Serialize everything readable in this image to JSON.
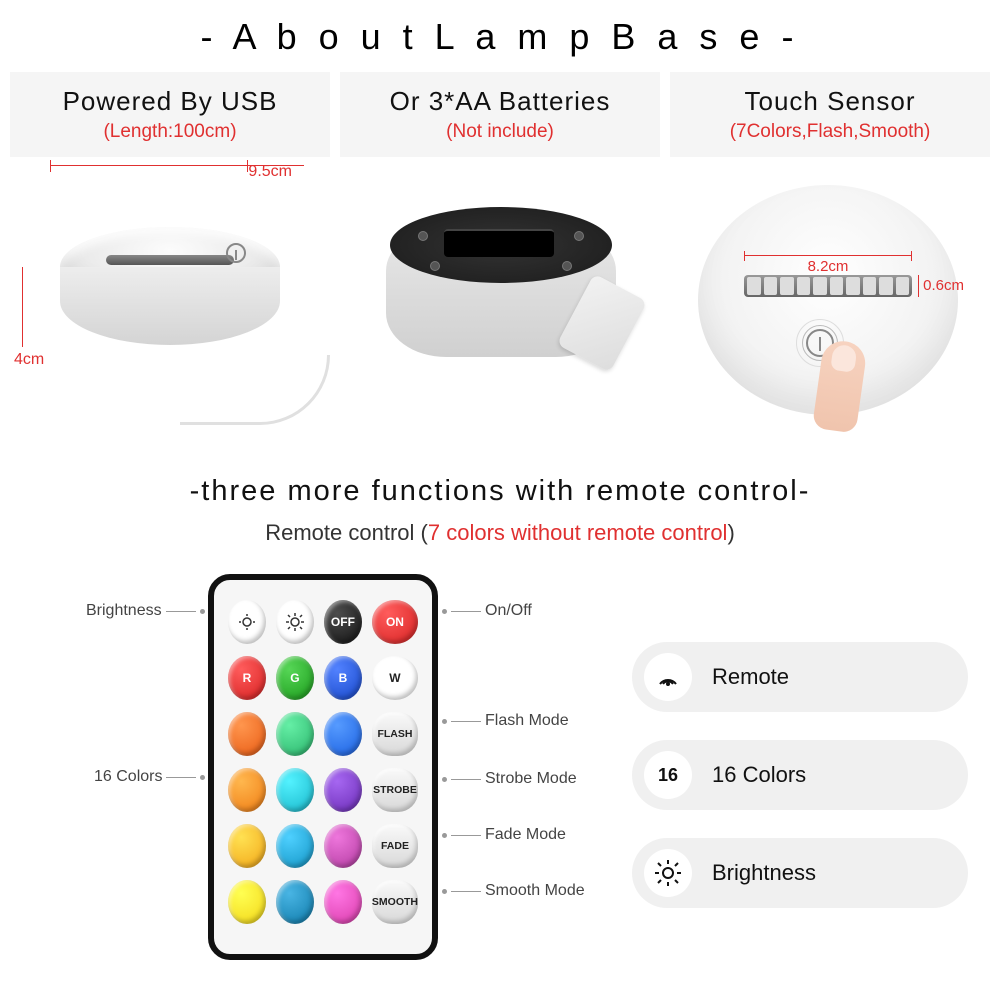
{
  "title": "- A b o u t   L a m p   B a s e -",
  "cards": [
    {
      "title": "Powered By USB",
      "sub": "(Length:100cm)",
      "dim_width": "9.5cm",
      "dim_height": "4cm"
    },
    {
      "title": "Or 3*AA Batteries",
      "sub": "(Not include)"
    },
    {
      "title": "Touch Sensor",
      "sub": "(7Colors,Flash,Smooth)",
      "dim_diameter": "8.2cm",
      "dim_slot": "0.6cm"
    }
  ],
  "subhead": "-three more functions with remote control-",
  "subline_a": "Remote control (",
  "subline_b": "7 colors without remote control",
  "subline_c": ")",
  "remote": {
    "labels": {
      "brightness": "Brightness",
      "onoff": "On/Off",
      "colors": "16 Colors",
      "flash": "Flash Mode",
      "strobe": "Strobe Mode",
      "fade": "Fade Mode",
      "smooth": "Smooth Mode"
    },
    "row1": [
      {
        "type": "circ",
        "bg": "#ffffff",
        "icon": "bright-",
        "fg": "#333"
      },
      {
        "type": "circ",
        "bg": "#ffffff",
        "icon": "bright+",
        "fg": "#333"
      },
      {
        "type": "circ",
        "bg": "#111111",
        "text": "OFF"
      },
      {
        "type": "circ",
        "bg": "#d62020",
        "text": "ON"
      }
    ],
    "row2": [
      {
        "type": "circ",
        "bg": "#d62020",
        "text": "R"
      },
      {
        "type": "circ",
        "bg": "#1a9a1a",
        "text": "G"
      },
      {
        "type": "circ",
        "bg": "#1646c8",
        "text": "B"
      },
      {
        "type": "circ",
        "bg": "#ffffff",
        "text": "W",
        "fg": "#222"
      }
    ],
    "row3": [
      {
        "type": "circ",
        "bg": "#e85a12"
      },
      {
        "type": "circ",
        "bg": "#29b36a"
      },
      {
        "type": "circ",
        "bg": "#1a5fe0"
      },
      {
        "type": "pill",
        "text": "FLASH"
      }
    ],
    "row4": [
      {
        "type": "circ",
        "bg": "#ef7b12"
      },
      {
        "type": "circ",
        "bg": "#17b6c9"
      },
      {
        "type": "circ",
        "bg": "#6a2bb5"
      },
      {
        "type": "pill",
        "text": "STROBE"
      }
    ],
    "row5": [
      {
        "type": "circ",
        "bg": "#f2a516"
      },
      {
        "type": "circ",
        "bg": "#1294c4"
      },
      {
        "type": "circ",
        "bg": "#b23aa0"
      },
      {
        "type": "pill",
        "text": "FADE"
      }
    ],
    "row6": [
      {
        "type": "circ",
        "bg": "#f2d516"
      },
      {
        "type": "circ",
        "bg": "#0d79a8"
      },
      {
        "type": "circ",
        "bg": "#d83aa8"
      },
      {
        "type": "pill",
        "text": "SMOOTH"
      }
    ]
  },
  "pills": [
    {
      "icon": "remote",
      "text": "Remote"
    },
    {
      "icon": "16",
      "text": "16 Colors"
    },
    {
      "icon": "bright",
      "text": "Brightness"
    }
  ],
  "colors": {
    "accent_red": "#e03030",
    "card_bg": "#f5f5f5",
    "pill_bg": "#f0f0f0",
    "page_bg": "#ffffff"
  }
}
